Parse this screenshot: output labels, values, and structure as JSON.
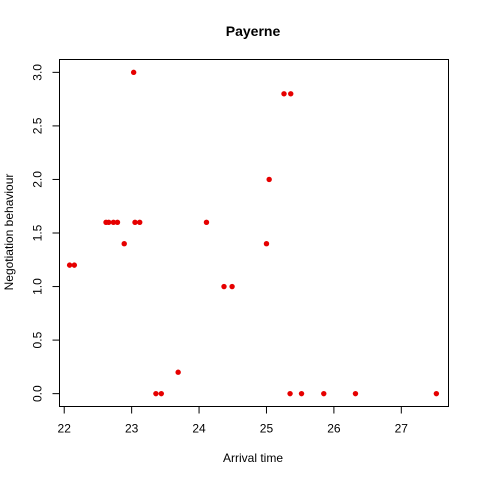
{
  "chart_data": {
    "type": "scatter",
    "title": "Payerne",
    "xlabel": "Arrival time",
    "ylabel": "Negotiation behaviour",
    "xlim": [
      21.93,
      27.7
    ],
    "ylim": [
      -0.12,
      3.12
    ],
    "x_ticks": [
      "22",
      "23",
      "24",
      "25",
      "26",
      "27"
    ],
    "y_ticks": [
      "0.0",
      "0.5",
      "1.0",
      "1.5",
      "2.0",
      "2.5",
      "3.0"
    ],
    "grid": false,
    "legend": "none",
    "point_color": "#e60000",
    "points": [
      {
        "x": 22.08,
        "y": 1.2
      },
      {
        "x": 22.15,
        "y": 1.2
      },
      {
        "x": 22.62,
        "y": 1.6
      },
      {
        "x": 22.66,
        "y": 1.6
      },
      {
        "x": 22.73,
        "y": 1.6
      },
      {
        "x": 22.79,
        "y": 1.6
      },
      {
        "x": 22.89,
        "y": 1.4
      },
      {
        "x": 23.03,
        "y": 3.0
      },
      {
        "x": 23.05,
        "y": 1.6
      },
      {
        "x": 23.12,
        "y": 1.6
      },
      {
        "x": 23.36,
        "y": 0.0
      },
      {
        "x": 23.44,
        "y": 0.0
      },
      {
        "x": 23.69,
        "y": 0.2
      },
      {
        "x": 24.11,
        "y": 1.6
      },
      {
        "x": 24.37,
        "y": 1.0
      },
      {
        "x": 24.49,
        "y": 1.0
      },
      {
        "x": 25.0,
        "y": 1.4
      },
      {
        "x": 25.04,
        "y": 2.0
      },
      {
        "x": 25.26,
        "y": 2.8
      },
      {
        "x": 25.36,
        "y": 2.8
      },
      {
        "x": 25.35,
        "y": 0.0
      },
      {
        "x": 25.52,
        "y": 0.0
      },
      {
        "x": 25.85,
        "y": 0.0
      },
      {
        "x": 26.32,
        "y": 0.0
      },
      {
        "x": 27.52,
        "y": 0.0
      }
    ]
  }
}
